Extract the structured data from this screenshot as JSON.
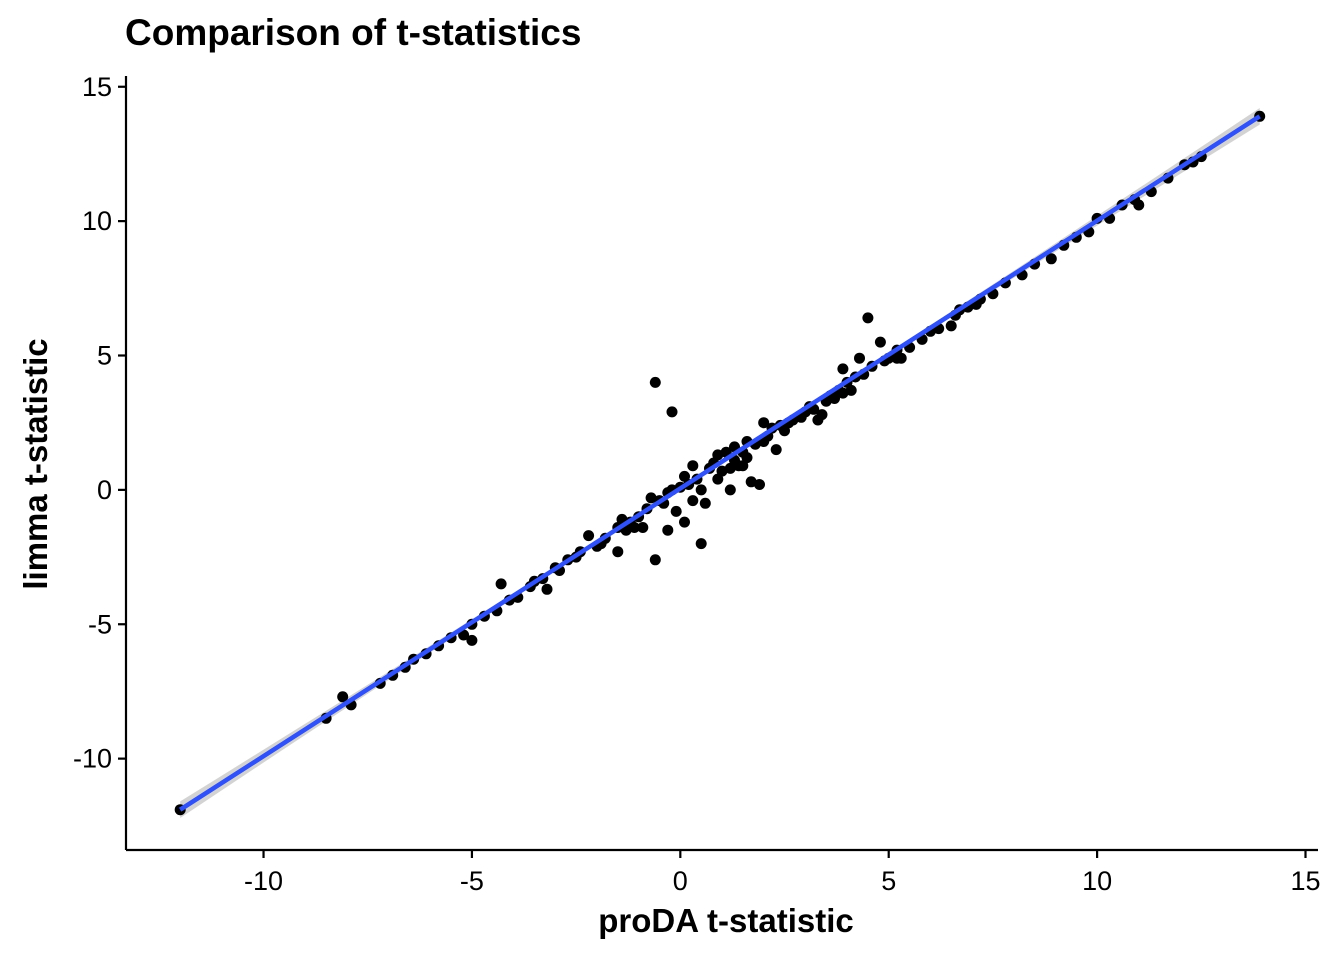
{
  "chart_data": {
    "type": "scatter",
    "title": "Comparison of t-statistics",
    "xlabel": "proDA t-statistic",
    "ylabel": "limma t-statistic",
    "xlim": [
      -13.3,
      15.3
    ],
    "ylim": [
      -13.4,
      15.4
    ],
    "x_ticks": [
      -10,
      -5,
      0,
      5,
      10,
      15
    ],
    "y_ticks": [
      -10,
      -5,
      0,
      5,
      10,
      15
    ],
    "x_tick_labels": [
      "-10",
      "-5",
      "0",
      "5",
      "10",
      "15"
    ],
    "y_tick_labels": [
      "-10",
      "-5",
      "0",
      "5",
      "10",
      "15"
    ],
    "grid": false,
    "legend": "none",
    "colors": {
      "points": "#000000",
      "fit_line": "#3050f8",
      "confidence_band": "#c8c8c8"
    },
    "fit_line": {
      "method": "linear",
      "from": [
        -12.0,
        -11.9
      ],
      "to": [
        13.9,
        13.9
      ]
    },
    "series": [
      {
        "points": [
          [
            -12.0,
            -11.9
          ],
          [
            -8.5,
            -8.5
          ],
          [
            -8.1,
            -7.7
          ],
          [
            -7.9,
            -8.0
          ],
          [
            -7.2,
            -7.2
          ],
          [
            -6.9,
            -6.9
          ],
          [
            -6.6,
            -6.6
          ],
          [
            -6.4,
            -6.3
          ],
          [
            -6.1,
            -6.1
          ],
          [
            -5.8,
            -5.8
          ],
          [
            -5.5,
            -5.5
          ],
          [
            -5.2,
            -5.4
          ],
          [
            -5.0,
            -5.0
          ],
          [
            -5.0,
            -5.6
          ],
          [
            -4.7,
            -4.7
          ],
          [
            -4.4,
            -4.5
          ],
          [
            -4.3,
            -3.5
          ],
          [
            -4.1,
            -4.1
          ],
          [
            -3.9,
            -4.0
          ],
          [
            -3.6,
            -3.6
          ],
          [
            -3.3,
            -3.3
          ],
          [
            -3.2,
            -3.7
          ],
          [
            -3.0,
            -2.9
          ],
          [
            -2.7,
            -2.6
          ],
          [
            -2.5,
            -2.5
          ],
          [
            -2.2,
            -1.7
          ],
          [
            -2.0,
            -2.1
          ],
          [
            -1.8,
            -1.8
          ],
          [
            -1.5,
            -1.4
          ],
          [
            -1.5,
            -2.3
          ],
          [
            -1.2,
            -1.2
          ],
          [
            -1.0,
            -1.0
          ],
          [
            -0.9,
            -1.4
          ],
          [
            -0.8,
            -0.7
          ],
          [
            -0.7,
            -0.3
          ],
          [
            -0.6,
            -2.6
          ],
          [
            -0.5,
            -0.4
          ],
          [
            -0.3,
            -0.1
          ],
          [
            -0.3,
            -1.5
          ],
          [
            -0.2,
            0.0
          ],
          [
            -0.1,
            -0.8
          ],
          [
            0.0,
            0.1
          ],
          [
            0.1,
            0.5
          ],
          [
            0.1,
            -1.2
          ],
          [
            0.2,
            0.2
          ],
          [
            0.3,
            -0.4
          ],
          [
            0.4,
            0.4
          ],
          [
            0.5,
            0.0
          ],
          [
            0.5,
            -2.0
          ],
          [
            0.6,
            -0.5
          ],
          [
            0.7,
            0.8
          ],
          [
            0.8,
            1.0
          ],
          [
            0.9,
            0.4
          ],
          [
            1.0,
            0.7
          ],
          [
            1.1,
            1.4
          ],
          [
            1.2,
            0.8
          ],
          [
            1.2,
            0.0
          ],
          [
            1.3,
            1.1
          ],
          [
            1.4,
            0.9
          ],
          [
            1.5,
            1.4
          ],
          [
            1.6,
            1.2
          ],
          [
            1.7,
            0.3
          ],
          [
            1.8,
            1.7
          ],
          [
            1.9,
            0.2
          ],
          [
            2.0,
            1.8
          ],
          [
            2.1,
            2.0
          ],
          [
            2.2,
            2.3
          ],
          [
            2.3,
            1.5
          ],
          [
            2.4,
            2.4
          ],
          [
            2.5,
            2.2
          ],
          [
            2.7,
            2.6
          ],
          [
            2.9,
            2.7
          ],
          [
            3.0,
            2.9
          ],
          [
            3.2,
            3.0
          ],
          [
            3.3,
            2.6
          ],
          [
            3.5,
            3.3
          ],
          [
            3.6,
            3.5
          ],
          [
            3.8,
            3.7
          ],
          [
            3.9,
            3.6
          ],
          [
            3.9,
            4.5
          ],
          [
            4.0,
            4.0
          ],
          [
            4.1,
            3.7
          ],
          [
            4.2,
            4.2
          ],
          [
            4.4,
            4.3
          ],
          [
            4.5,
            6.4
          ],
          [
            4.6,
            4.6
          ],
          [
            4.8,
            5.5
          ],
          [
            4.9,
            4.8
          ],
          [
            5.0,
            4.9
          ],
          [
            5.2,
            5.2
          ],
          [
            5.3,
            4.9
          ],
          [
            5.5,
            5.3
          ],
          [
            5.8,
            5.6
          ],
          [
            6.0,
            5.9
          ],
          [
            6.2,
            6.0
          ],
          [
            6.5,
            6.1
          ],
          [
            6.6,
            6.5
          ],
          [
            6.9,
            6.8
          ],
          [
            7.2,
            7.1
          ],
          [
            7.5,
            7.3
          ],
          [
            7.8,
            7.7
          ],
          [
            8.2,
            8.0
          ],
          [
            8.5,
            8.4
          ],
          [
            8.9,
            8.6
          ],
          [
            9.2,
            9.1
          ],
          [
            9.5,
            9.4
          ],
          [
            9.8,
            9.6
          ],
          [
            10.0,
            10.1
          ],
          [
            10.3,
            10.1
          ],
          [
            10.6,
            10.6
          ],
          [
            10.9,
            10.8
          ],
          [
            11.0,
            10.6
          ],
          [
            11.3,
            11.1
          ],
          [
            11.7,
            11.6
          ],
          [
            12.1,
            12.1
          ],
          [
            12.3,
            12.2
          ],
          [
            12.5,
            12.4
          ],
          [
            13.9,
            13.9
          ],
          [
            -0.6,
            4.0
          ],
          [
            -0.2,
            2.9
          ],
          [
            1.3,
            1.6
          ],
          [
            1.5,
            0.9
          ],
          [
            2.0,
            2.5
          ],
          [
            3.4,
            2.8
          ],
          [
            4.3,
            4.9
          ],
          [
            5.2,
            4.9
          ],
          [
            6.7,
            6.7
          ],
          [
            7.1,
            6.9
          ],
          [
            -1.4,
            -1.1
          ],
          [
            -1.1,
            -1.4
          ],
          [
            0.3,
            0.9
          ],
          [
            0.9,
            1.3
          ],
          [
            1.6,
            1.8
          ],
          [
            2.6,
            2.5
          ],
          [
            3.1,
            3.1
          ],
          [
            3.7,
            3.4
          ],
          [
            -3.5,
            -3.4
          ],
          [
            -2.9,
            -3.0
          ],
          [
            -2.4,
            -2.3
          ],
          [
            -1.9,
            -2.0
          ],
          [
            -1.3,
            -1.5
          ],
          [
            -0.4,
            -0.5
          ]
        ]
      }
    ]
  }
}
